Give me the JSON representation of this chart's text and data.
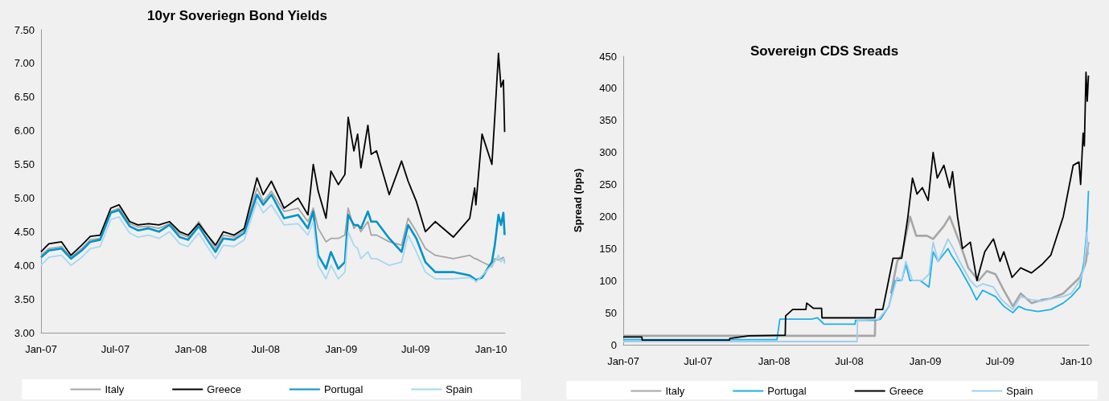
{
  "chart_data": [
    {
      "type": "line",
      "title": "10yr Soveriegn Bond Yields",
      "legend": "bottom",
      "grid": false,
      "xlim": [
        "2007-01-01",
        "2010-02-04"
      ],
      "xticks": [
        {
          "value": "2007-01-01",
          "label": "Jan-07"
        },
        {
          "value": "2007-07-01",
          "label": "Jul-07"
        },
        {
          "value": "2008-01-01",
          "label": "Jan-08"
        },
        {
          "value": "2008-07-01",
          "label": "Jul-08"
        },
        {
          "value": "2009-01-01",
          "label": "Jan-09"
        },
        {
          "value": "2009-07-01",
          "label": "Jul-09"
        },
        {
          "value": "2010-01-01",
          "label": "Jan-10"
        }
      ],
      "ylim": [
        3,
        7.5
      ],
      "yticks": [
        {
          "value": 3,
          "label": "3.00"
        },
        {
          "value": 3.5,
          "label": "3.50"
        },
        {
          "value": 4,
          "label": "4.00"
        },
        {
          "value": 4.5,
          "label": "4.50"
        },
        {
          "value": 5,
          "label": "5.00"
        },
        {
          "value": 5.5,
          "label": "5.50"
        },
        {
          "value": 6,
          "label": "6.00"
        },
        {
          "value": 6.5,
          "label": "6.50"
        },
        {
          "value": 7,
          "label": "7.00"
        },
        {
          "value": 7.5,
          "label": "7.50"
        }
      ],
      "x": [
        "2007-01-01",
        "2007-01-20",
        "2007-02-20",
        "2007-03-15",
        "2007-04-10",
        "2007-05-01",
        "2007-05-25",
        "2007-06-20",
        "2007-07-10",
        "2007-08-05",
        "2007-08-25",
        "2007-09-20",
        "2007-10-15",
        "2007-11-10",
        "2007-12-05",
        "2007-12-25",
        "2008-01-20",
        "2008-02-10",
        "2008-03-01",
        "2008-03-20",
        "2008-04-15",
        "2008-05-10",
        "2008-06-10",
        "2008-06-25",
        "2008-07-15",
        "2008-08-15",
        "2008-09-18",
        "2008-10-12",
        "2008-10-25",
        "2008-11-06",
        "2008-11-25",
        "2008-12-07",
        "2008-12-25",
        "2009-01-10",
        "2009-01-18",
        "2009-02-01",
        "2009-02-10",
        "2009-02-18",
        "2009-03-07",
        "2009-03-15",
        "2009-03-28",
        "2009-04-28",
        "2009-05-28",
        "2009-06-13",
        "2009-07-03",
        "2009-07-25",
        "2009-08-18",
        "2009-10-01",
        "2009-11-10",
        "2009-11-22",
        "2009-11-25",
        "2009-12-10",
        "2010-01-03",
        "2010-01-10",
        "2010-01-19",
        "2010-01-25",
        "2010-01-31",
        "2010-02-03"
      ],
      "series": [
        {
          "name": "Italy",
          "color": "#a6a6a6",
          "values": [
            4.15,
            4.25,
            4.28,
            4.12,
            4.25,
            4.38,
            4.4,
            4.8,
            4.85,
            4.62,
            4.57,
            4.58,
            4.55,
            4.62,
            4.47,
            4.42,
            4.65,
            4.45,
            4.25,
            4.45,
            4.42,
            4.52,
            5.15,
            4.95,
            5.1,
            4.8,
            4.85,
            4.65,
            4.85,
            4.55,
            4.35,
            4.4,
            4.4,
            4.45,
            4.85,
            4.55,
            4.6,
            4.5,
            4.65,
            4.45,
            4.45,
            4.35,
            4.3,
            4.7,
            4.5,
            4.25,
            4.15,
            4.1,
            4.15,
            4.1,
            4.1,
            4.05,
            3.98,
            4.1,
            4.08,
            4.1,
            4.12,
            4.05
          ]
        },
        {
          "name": "Greece",
          "color": "#000000",
          "values": [
            4.2,
            4.32,
            4.35,
            4.15,
            4.3,
            4.43,
            4.45,
            4.85,
            4.9,
            4.65,
            4.6,
            4.62,
            4.6,
            4.65,
            4.5,
            4.45,
            4.62,
            4.45,
            4.3,
            4.5,
            4.45,
            4.55,
            5.3,
            5.05,
            5.25,
            4.85,
            5.0,
            4.75,
            5.5,
            5.1,
            4.7,
            5.4,
            5.2,
            5.35,
            6.2,
            5.7,
            5.95,
            5.45,
            6.08,
            5.65,
            5.7,
            5.05,
            5.55,
            5.25,
            4.95,
            4.5,
            4.65,
            4.42,
            4.7,
            5.15,
            4.9,
            5.95,
            5.5,
            6.2,
            7.15,
            6.65,
            6.75,
            5.98
          ]
        },
        {
          "name": "Portugal",
          "color": "#0093c9",
          "values": [
            4.12,
            4.22,
            4.25,
            4.1,
            4.22,
            4.35,
            4.38,
            4.78,
            4.82,
            4.58,
            4.52,
            4.55,
            4.5,
            4.6,
            4.42,
            4.38,
            4.58,
            4.38,
            4.2,
            4.4,
            4.38,
            4.48,
            5.05,
            4.9,
            5.05,
            4.7,
            4.75,
            4.55,
            4.8,
            4.15,
            3.95,
            4.2,
            3.95,
            4.05,
            4.75,
            4.6,
            4.6,
            4.55,
            4.8,
            4.65,
            4.65,
            4.4,
            4.2,
            4.6,
            4.4,
            4.05,
            3.9,
            3.9,
            3.85,
            3.8,
            3.78,
            3.82,
            4.05,
            4.3,
            4.75,
            4.6,
            4.78,
            4.45
          ]
        },
        {
          "name": "Spain",
          "color": "#a8d8f0",
          "values": [
            4.0,
            4.12,
            4.15,
            4.0,
            4.12,
            4.25,
            4.28,
            4.68,
            4.72,
            4.48,
            4.42,
            4.45,
            4.4,
            4.5,
            4.32,
            4.28,
            4.48,
            4.28,
            4.1,
            4.3,
            4.28,
            4.38,
            4.95,
            4.78,
            4.9,
            4.6,
            4.62,
            4.45,
            4.65,
            4.0,
            3.8,
            4.0,
            3.8,
            3.9,
            4.5,
            4.3,
            4.25,
            4.1,
            4.2,
            4.1,
            4.1,
            4.0,
            4.05,
            4.45,
            4.2,
            3.9,
            3.8,
            3.8,
            3.82,
            3.78,
            3.75,
            3.85,
            4.0,
            4.05,
            4.15,
            4.05,
            4.1,
            4.02
          ]
        }
      ]
    },
    {
      "type": "line",
      "title": "Sovereign CDS Sreads",
      "ylabel": "Spread (bps)",
      "legend": "bottom",
      "grid": false,
      "xlim": [
        "2007-01-01",
        "2010-02-01"
      ],
      "xticks": [
        {
          "value": "2007-01-01",
          "label": "Jan-07"
        },
        {
          "value": "2007-07-01",
          "label": "Jul-07"
        },
        {
          "value": "2008-01-01",
          "label": "Jan-08"
        },
        {
          "value": "2008-07-01",
          "label": "Jul-08"
        },
        {
          "value": "2009-01-01",
          "label": "Jan-09"
        },
        {
          "value": "2009-07-01",
          "label": "Jul-09"
        },
        {
          "value": "2010-01-01",
          "label": "Jan-10"
        }
      ],
      "ylim": [
        0,
        450
      ],
      "yticks": [
        0,
        50,
        100,
        150,
        200,
        250,
        300,
        350,
        400,
        450
      ],
      "series": [
        {
          "name": "Italy",
          "color": "#a6a6a6",
          "x": [
            "2007-01-01",
            "2008-09-01",
            "2008-09-02",
            "2008-09-20",
            "2008-10-10",
            "2008-10-25",
            "2008-11-05",
            "2008-11-25",
            "2008-12-10",
            "2009-01-05",
            "2009-01-20",
            "2009-02-15",
            "2009-03-01",
            "2009-03-25",
            "2009-04-15",
            "2009-05-10",
            "2009-05-30",
            "2009-06-20",
            "2009-07-10",
            "2009-08-01",
            "2009-08-20",
            "2009-09-15",
            "2009-10-10",
            "2009-11-01",
            "2009-12-01",
            "2009-12-25",
            "2010-01-10",
            "2010-01-20",
            "2010-01-25",
            "2010-01-31"
          ],
          "values": [
            14,
            14,
            40,
            null,
            80,
            130,
            140,
            200,
            170,
            170,
            165,
            185,
            200,
            160,
            120,
            100,
            115,
            110,
            85,
            60,
            80,
            65,
            70,
            72,
            80,
            95,
            105,
            120,
            130,
            160
          ]
        },
        {
          "name": "Portugal",
          "color": "#1fb0e6",
          "x": [
            "2007-01-01",
            "2008-01-08",
            "2008-01-15",
            "2008-04-01",
            "2008-04-15",
            "2008-05-01",
            "2008-07-15",
            "2008-07-16",
            "2008-09-01",
            "2008-09-15",
            "2008-10-05",
            "2008-10-20",
            "2008-11-05",
            "2008-11-15",
            "2008-11-25",
            "2008-12-20",
            "2009-01-10",
            "2009-01-20",
            "2009-02-01",
            "2009-02-25",
            "2009-03-05",
            "2009-03-25",
            "2009-04-20",
            "2009-05-05",
            "2009-05-20",
            "2009-06-20",
            "2009-07-10",
            "2009-08-01",
            "2009-08-15",
            "2009-09-01",
            "2009-10-01",
            "2009-11-01",
            "2009-12-01",
            "2009-12-20",
            "2010-01-10",
            "2010-01-20",
            "2010-01-27",
            "2010-01-31"
          ],
          "values": [
            8,
            8,
            40,
            40,
            42,
            32,
            32,
            38,
            38,
            40,
            60,
            100,
            100,
            125,
            100,
            100,
            90,
            145,
            130,
            150,
            140,
            120,
            90,
            70,
            85,
            75,
            60,
            50,
            60,
            55,
            52,
            55,
            65,
            75,
            90,
            130,
            180,
            240
          ]
        },
        {
          "name": "Greece",
          "color": "#000000",
          "x": [
            "2007-01-01",
            "2007-02-15",
            "2007-02-16",
            "2007-09-15",
            "2007-09-16",
            "2007-11-01",
            "2008-01-28",
            "2008-01-29",
            "2008-02-15",
            "2008-03-18",
            "2008-03-20",
            "2008-04-05",
            "2008-04-25",
            "2008-04-26",
            "2008-09-01",
            "2008-09-03",
            "2008-09-20",
            "2008-10-01",
            "2008-10-15",
            "2008-11-05",
            "2008-11-20",
            "2008-12-01",
            "2008-12-12",
            "2008-12-25",
            "2009-01-08",
            "2009-01-20",
            "2009-01-30",
            "2009-02-15",
            "2009-03-01",
            "2009-03-08",
            "2009-03-20",
            "2009-04-01",
            "2009-04-20",
            "2009-05-06",
            "2009-05-25",
            "2009-06-15",
            "2009-07-01",
            "2009-07-10",
            "2009-07-30",
            "2009-08-20",
            "2009-09-15",
            "2009-10-10",
            "2009-11-01",
            "2009-12-01",
            "2009-12-25",
            "2010-01-08",
            "2010-01-12",
            "2010-01-18",
            "2010-01-21",
            "2010-01-25",
            "2010-01-28",
            "2010-01-31"
          ],
          "values": [
            12,
            12,
            7,
            7,
            10,
            14,
            15,
            45,
            55,
            55,
            65,
            57,
            57,
            42,
            42,
            55,
            55,
            90,
            135,
            135,
            200,
            260,
            235,
            245,
            225,
            300,
            260,
            280,
            245,
            270,
            200,
            150,
            160,
            100,
            145,
            165,
            130,
            145,
            105,
            120,
            112,
            125,
            140,
            200,
            280,
            285,
            250,
            330,
            310,
            425,
            380,
            420
          ]
        },
        {
          "name": "Spain",
          "color": "#9fcff0",
          "x": [
            "2007-01-01",
            "2008-07-20",
            "2008-07-21",
            "2008-09-10",
            "2008-10-05",
            "2008-10-25",
            "2008-11-05",
            "2008-11-15",
            "2008-12-01",
            "2008-12-25",
            "2009-01-10",
            "2009-01-20",
            "2009-02-01",
            "2009-02-25",
            "2009-03-10",
            "2009-03-25",
            "2009-04-20",
            "2009-05-05",
            "2009-05-20",
            "2009-06-15",
            "2009-07-05",
            "2009-08-01",
            "2009-08-20",
            "2009-09-15",
            "2009-10-10",
            "2009-11-01",
            "2009-12-01",
            "2009-12-20",
            "2010-01-10",
            "2010-01-20",
            "2010-01-27",
            "2010-01-31"
          ],
          "values": [
            5,
            5,
            38,
            40,
            60,
            105,
            100,
            130,
            100,
            100,
            110,
            160,
            130,
            165,
            150,
            130,
            100,
            90,
            95,
            90,
            70,
            55,
            75,
            70,
            68,
            72,
            75,
            80,
            100,
            120,
            175,
            140
          ]
        }
      ]
    }
  ]
}
